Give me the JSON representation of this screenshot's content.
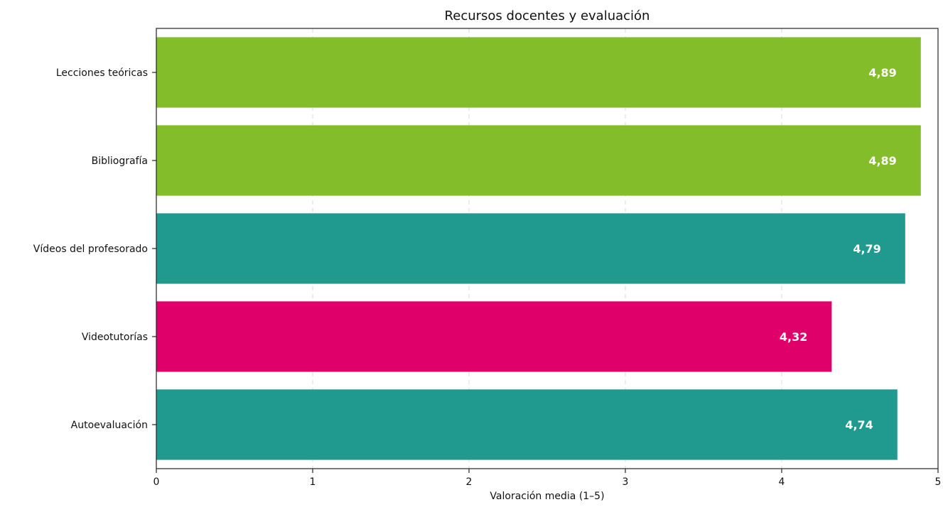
{
  "chart_data": {
    "type": "bar",
    "orientation": "horizontal",
    "title": "Recursos docentes y evaluación",
    "xlabel": "Valoración media (1–5)",
    "ylabel": "",
    "xlim": [
      0,
      5
    ],
    "x_ticks": [
      0,
      1,
      2,
      3,
      4,
      5
    ],
    "x_tick_labels": [
      "0",
      "1",
      "2",
      "3",
      "4",
      "5"
    ],
    "grid": "vertical dashed",
    "categories": [
      "Lecciones teóricas",
      "Bibliografía",
      "Vídeos del profesorado",
      "Videotutorías",
      "Autoevaluación"
    ],
    "values": [
      4.89,
      4.89,
      4.79,
      4.32,
      4.74
    ],
    "data_labels": [
      "4,89",
      "4,89",
      "4,79",
      "4,32",
      "4,74"
    ],
    "bar_colors": [
      "#84bd2a",
      "#84bd2a",
      "#20998e",
      "#e0006a",
      "#20998e"
    ]
  }
}
